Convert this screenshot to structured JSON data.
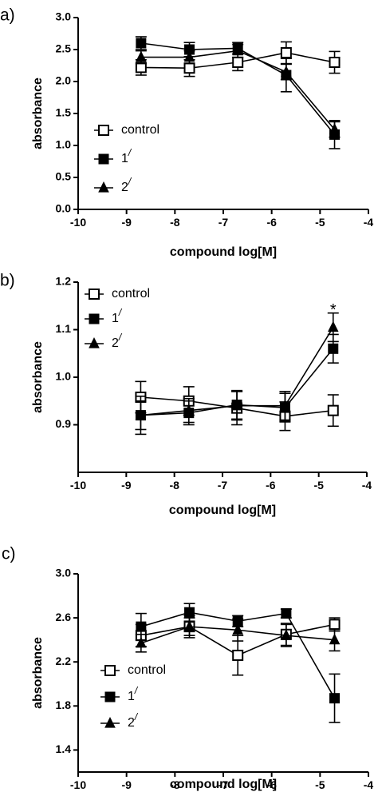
{
  "chart_data": [
    {
      "type": "line",
      "panel_label": "a)",
      "xlabel": "compound log[M]",
      "ylabel": "absorbance",
      "xlim": [
        -10,
        -4
      ],
      "ylim": [
        0,
        3
      ],
      "x_ticks": [
        -10,
        -9,
        -8,
        -7,
        -6,
        -5,
        -4
      ],
      "x_tick_labels": [
        "-10",
        "-9",
        "-8",
        "-7",
        "-6",
        "-5",
        "-4"
      ],
      "y_ticks": [
        0,
        0.5,
        1,
        1.5,
        2,
        2.5,
        3
      ],
      "y_tick_labels": [
        "0.0",
        "0.5",
        "1.0",
        "1.5",
        "2.0",
        "2.5",
        "3.0"
      ],
      "grid": false,
      "legend_position": "bottom-left",
      "x": [
        -8.7,
        -7.7,
        -6.7,
        -5.7,
        -4.7
      ],
      "series": [
        {
          "name": "control",
          "marker": "open-square",
          "values": [
            2.22,
            2.21,
            2.3,
            2.45,
            2.3
          ],
          "errors": [
            0.12,
            0.13,
            0.13,
            0.17,
            0.17
          ]
        },
        {
          "name": "1",
          "name_superscript": "/",
          "marker": "filled-square",
          "values": [
            2.6,
            2.5,
            2.52,
            2.1,
            1.17
          ],
          "errors": [
            0.1,
            0.11,
            0.09,
            0.26,
            0.22
          ]
        },
        {
          "name": "2",
          "name_superscript": "/",
          "marker": "filled-triangle",
          "values": [
            2.38,
            2.38,
            2.48,
            2.15,
            1.25
          ],
          "errors": [
            0.1,
            0.1,
            0.1,
            0.12,
            0.12
          ]
        }
      ],
      "annotations": []
    },
    {
      "type": "line",
      "panel_label": "b)",
      "xlabel": "compound log[M]",
      "ylabel": "absorbance",
      "xlim": [
        -10,
        -4
      ],
      "ylim": [
        0.8,
        1.2
      ],
      "x_ticks": [
        -10,
        -9,
        -8,
        -7,
        -6,
        -5,
        -4
      ],
      "x_tick_labels": [
        "-10",
        "-9",
        "-8",
        "-7",
        "-6",
        "-5",
        "-4"
      ],
      "y_ticks": [
        0.9,
        1.0,
        1.1,
        1.2
      ],
      "y_tick_labels": [
        "0.9",
        "1.0",
        "1.1",
        "1.2"
      ],
      "grid": false,
      "legend_position": "top-left",
      "x": [
        -8.7,
        -7.7,
        -6.7,
        -5.7,
        -4.7
      ],
      "series": [
        {
          "name": "control",
          "marker": "open-square",
          "values": [
            0.958,
            0.95,
            0.935,
            0.918,
            0.93
          ],
          "errors": [
            0.033,
            0.03,
            0.035,
            0.03,
            0.033
          ]
        },
        {
          "name": "1",
          "name_superscript": "/",
          "marker": "filled-square",
          "values": [
            0.92,
            0.925,
            0.942,
            0.936,
            1.06
          ],
          "errors": [
            0.04,
            0.025,
            0.03,
            0.03,
            0.03
          ]
        },
        {
          "name": "2",
          "name_superscript": "/",
          "marker": "filled-triangle",
          "values": [
            0.92,
            0.93,
            0.94,
            0.94,
            1.105
          ],
          "errors": [
            0.03,
            0.025,
            0.03,
            0.03,
            0.03
          ]
        }
      ],
      "annotations": [
        {
          "text": "*",
          "x": -4.7,
          "y": 1.14
        }
      ]
    },
    {
      "type": "line",
      "panel_label": "c)",
      "xlabel": "compound log[M]",
      "ylabel": "absorbance",
      "xlim": [
        -10,
        -4
      ],
      "ylim": [
        1.2,
        3.0
      ],
      "x_ticks": [
        -10,
        -9,
        -8,
        -7,
        -6,
        -5,
        -4
      ],
      "x_tick_labels": [
        "-10",
        "-9",
        "-8",
        "-7",
        "-6",
        "-5",
        "-4"
      ],
      "y_ticks": [
        1.4,
        1.8,
        2.2,
        2.6,
        3.0
      ],
      "y_tick_labels": [
        "1.4",
        "1.8",
        "2.2",
        "2.6",
        "3.0"
      ],
      "grid": false,
      "legend_position": "bottom-left",
      "x": [
        -8.7,
        -7.7,
        -6.7,
        -5.7,
        -4.7
      ],
      "series": [
        {
          "name": "control",
          "marker": "open-square",
          "values": [
            2.44,
            2.52,
            2.26,
            2.45,
            2.54
          ],
          "errors": [
            0.1,
            0.1,
            0.18,
            0.1,
            0.06
          ]
        },
        {
          "name": "1",
          "name_superscript": "/",
          "marker": "filled-square",
          "values": [
            2.52,
            2.65,
            2.57,
            2.64,
            1.87
          ],
          "errors": [
            0.12,
            0.08,
            0.05,
            0.04,
            0.22
          ]
        },
        {
          "name": "2",
          "name_superscript": "/",
          "marker": "filled-triangle",
          "values": [
            2.37,
            2.52,
            2.49,
            2.44,
            2.4
          ],
          "errors": [
            0.08,
            0.08,
            0.1,
            0.1,
            0.1
          ]
        }
      ],
      "annotations": []
    }
  ]
}
